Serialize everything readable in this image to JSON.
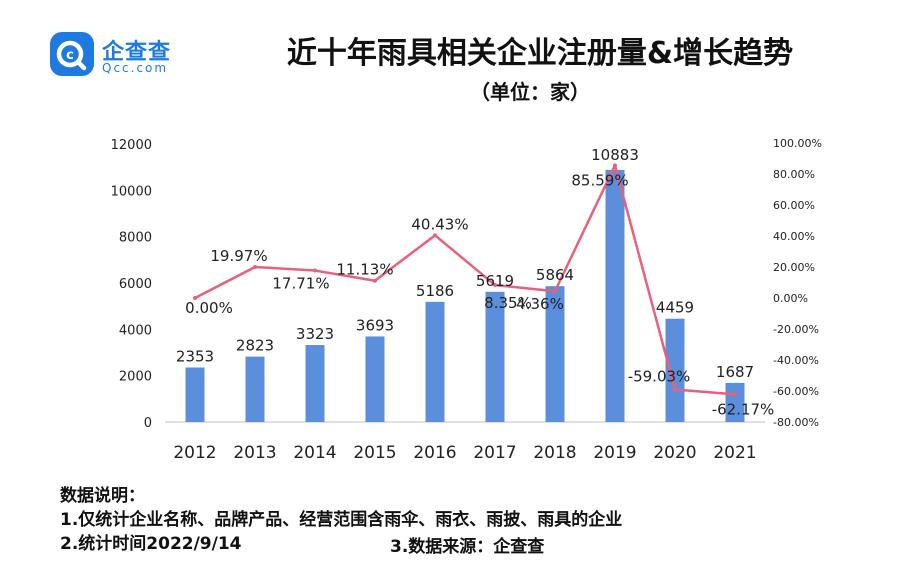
{
  "logo": {
    "name": "企查查",
    "domain": "Qcc.com",
    "color": "#1f7ae0"
  },
  "title": "近十年雨具相关企业注册量&增长趋势",
  "subtitle": "（单位：家）",
  "notes": {
    "heading": "数据说明：",
    "line1": "1.仅统计企业名称、品牌产品、经营范围含雨伞、雨衣、雨披、雨具的企业",
    "line2": "2.统计时间2022/9/14",
    "source": "3.数据来源：企查查"
  },
  "chart_data": {
    "type": "bar+line",
    "categories": [
      "2012",
      "2013",
      "2014",
      "2015",
      "2016",
      "2017",
      "2018",
      "2019",
      "2020",
      "2021"
    ],
    "series": [
      {
        "type": "bar",
        "axis": "left",
        "color": "#5b8fdc",
        "values": [
          2353,
          2823,
          3323,
          3693,
          5186,
          5619,
          5864,
          10883,
          4459,
          1687
        ]
      },
      {
        "type": "line",
        "axis": "right",
        "color": "#e8607a",
        "values": [
          0.0,
          19.97,
          17.71,
          11.13,
          40.43,
          8.35,
          4.36,
          85.59,
          -59.03,
          -62.17
        ],
        "labels": [
          "0.00%",
          "19.97%",
          "17.71%",
          "11.13%",
          "40.43%",
          "8.35%",
          "4.36%",
          "85.59%",
          "-59.03%",
          "-62.17%"
        ]
      }
    ],
    "y_left": {
      "min": 0,
      "max": 12000,
      "ticks": [
        "0",
        "2000",
        "4000",
        "6000",
        "8000",
        "10000",
        "12000"
      ]
    },
    "y_right": {
      "min": -80,
      "max": 100,
      "ticks": [
        "-80.00%",
        "-60.00%",
        "-40.00%",
        "-20.00%",
        "0.00%",
        "20.00%",
        "40.00%",
        "60.00%",
        "80.00%",
        "100.00%"
      ]
    },
    "grid": false
  }
}
